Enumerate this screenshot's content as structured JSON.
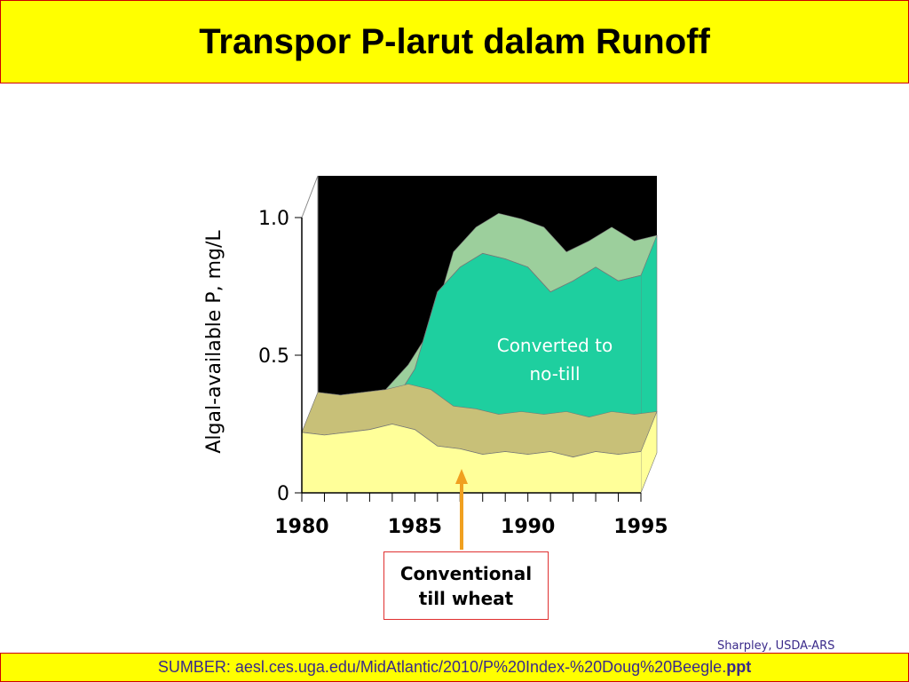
{
  "header": {
    "title": "Transpor P-larut dalam Runoff"
  },
  "chart_data": {
    "type": "area",
    "stacked": true,
    "ylabel": "Algal-available P, mg/L",
    "x": [
      1980,
      1981,
      1982,
      1983,
      1984,
      1985,
      1986,
      1987,
      1988,
      1989,
      1990,
      1991,
      1992,
      1993,
      1994,
      1995
    ],
    "xlim": [
      1980,
      1995
    ],
    "xticks": [
      1980,
      1985,
      1990,
      1995
    ],
    "ylim": [
      0,
      1
    ],
    "yticks": [
      0,
      0.5,
      {
        "value": 1,
        "label": "1.0"
      }
    ],
    "series": [
      {
        "name": "Conventional till wheat",
        "color": "#ffff99",
        "values": [
          0.22,
          0.21,
          0.22,
          0.23,
          0.25,
          0.23,
          0.17,
          0.16,
          0.14,
          0.15,
          0.14,
          0.15,
          0.13,
          0.15,
          0.14,
          0.15
        ]
      },
      {
        "name": "Converted to no-till",
        "color": "#1ecf9f",
        "values": [
          0,
          0,
          0,
          0,
          0.07,
          0.22,
          0.56,
          0.66,
          0.73,
          0.7,
          0.68,
          0.58,
          0.64,
          0.67,
          0.63,
          0.64
        ]
      }
    ]
  },
  "footer": {
    "credit": "Sharpley, USDA-ARS",
    "source": "SUMBER:  aesl.ces.uga.edu/MidAtlantic/2010/P%20Index-%20Doug%20Beegle.",
    "source_ext": "ppt"
  }
}
